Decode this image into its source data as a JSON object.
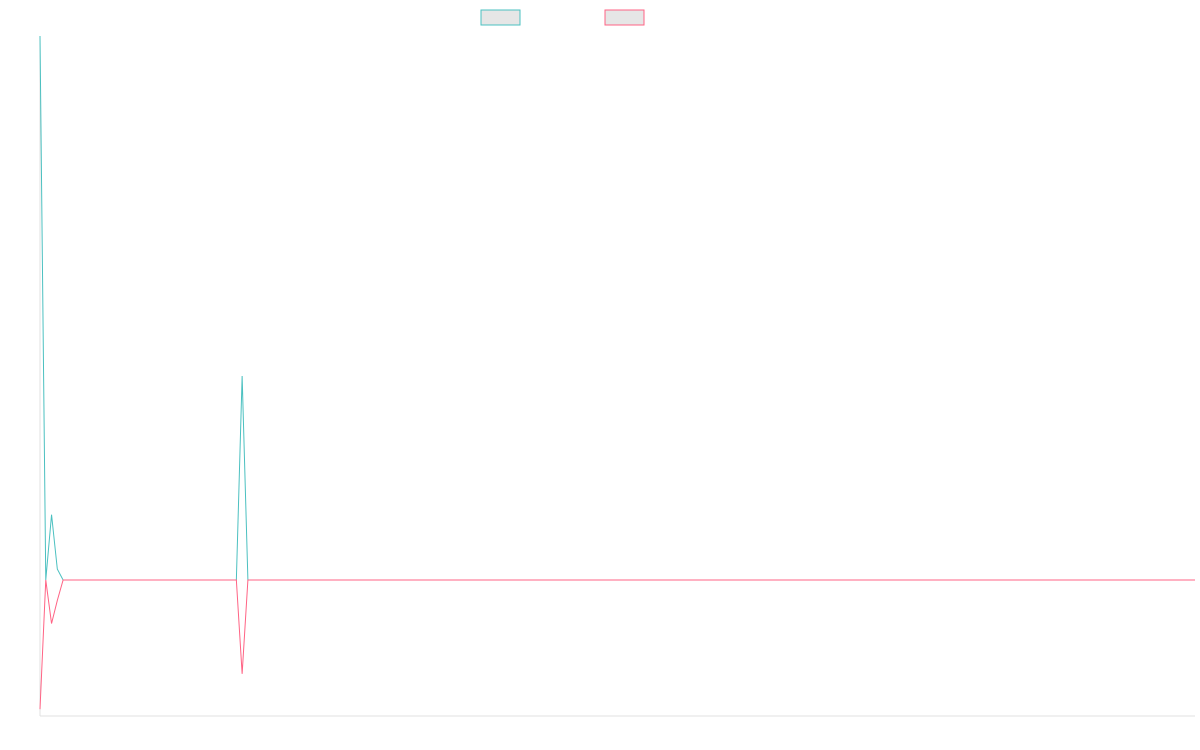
{
  "chart_data": {
    "type": "line",
    "title": "",
    "xlabel": "",
    "ylabel": "",
    "grid": false,
    "legend": "top-center",
    "x": [
      0,
      1,
      2,
      3,
      4,
      5,
      6,
      7,
      8,
      9,
      10,
      11,
      12,
      13,
      14,
      15,
      16,
      17,
      18,
      19,
      20,
      21,
      22,
      23,
      24,
      25,
      26,
      27,
      28,
      29,
      30,
      31,
      32,
      33,
      34,
      35,
      36,
      37,
      38,
      39,
      40,
      41,
      42,
      43,
      44,
      45,
      46,
      47,
      48,
      49,
      50,
      51,
      52,
      53,
      54,
      55,
      56,
      57,
      58,
      59,
      60,
      61,
      62,
      63,
      64,
      65,
      66,
      67,
      68,
      69,
      70,
      71,
      72,
      73,
      74,
      75,
      76,
      77,
      78,
      79,
      80,
      81,
      82,
      83,
      84,
      85,
      86,
      87,
      88,
      89,
      90,
      91,
      92,
      93,
      94,
      95,
      96,
      97,
      98,
      99,
      100,
      101,
      102,
      103,
      104,
      105,
      106,
      107,
      108,
      109,
      110,
      111,
      112,
      113,
      114,
      115,
      116,
      117,
      118,
      119,
      120,
      121,
      122,
      123,
      124,
      125,
      126,
      127,
      128,
      129,
      130,
      131,
      132,
      133,
      134,
      135,
      136,
      137,
      138,
      139,
      140,
      141,
      142,
      143,
      144,
      145,
      146,
      147,
      148,
      149,
      150,
      151,
      152,
      153,
      154,
      155,
      156,
      157,
      158,
      159,
      160,
      161,
      162,
      163,
      164,
      165,
      166,
      167,
      168,
      169,
      170,
      171,
      172,
      173,
      174,
      175,
      176,
      177,
      178,
      179,
      180,
      181,
      182,
      183,
      184,
      185,
      186,
      187,
      188,
      189,
      190,
      191,
      192,
      193,
      194,
      195,
      196,
      197,
      198,
      199,
      200
    ],
    "ylim": [
      -100,
      400
    ],
    "series": [
      {
        "color": "#4bc0c0",
        "values": [
          400,
          0,
          48,
          8,
          0,
          0,
          0,
          0,
          0,
          0,
          0,
          0,
          0,
          0,
          0,
          0,
          0,
          0,
          0,
          0,
          0,
          0,
          0,
          0,
          0,
          0,
          0,
          0,
          0,
          0,
          0,
          0,
          0,
          0,
          0,
          150,
          0,
          0,
          0,
          0,
          0,
          0,
          0,
          0,
          0,
          0,
          0,
          0,
          0,
          0,
          0,
          0,
          0,
          0,
          0,
          0,
          0,
          0,
          0,
          0,
          0,
          0,
          0,
          0,
          0,
          0,
          0,
          0,
          0,
          0,
          0,
          0,
          0,
          0,
          0,
          0,
          0,
          0,
          0,
          0,
          0,
          0,
          0,
          0,
          0,
          0,
          0,
          0,
          0,
          0,
          0,
          0,
          0,
          0,
          0,
          0,
          0,
          0,
          0,
          0,
          0,
          0,
          0,
          0,
          0,
          0,
          0,
          0,
          0,
          0,
          0,
          0,
          0,
          0,
          0,
          0,
          0,
          0,
          0,
          0,
          0,
          0,
          0,
          0,
          0,
          0,
          0,
          0,
          0,
          0,
          0,
          0,
          0,
          0,
          0,
          0,
          0,
          0,
          0,
          0,
          0,
          0,
          0,
          0,
          0,
          0,
          0,
          0,
          0,
          0,
          0,
          0,
          0,
          0,
          0,
          0,
          0,
          0,
          0,
          0,
          0,
          0,
          0,
          0,
          0,
          0,
          0,
          0,
          0,
          0,
          0,
          0,
          0,
          0,
          0,
          0,
          0,
          0,
          0,
          0,
          0,
          0,
          0,
          0,
          0,
          0,
          0,
          0,
          0,
          0,
          0,
          0,
          0,
          0,
          0,
          0,
          0,
          0,
          0,
          0,
          0
        ]
      },
      {
        "color": "#ff6384",
        "values": [
          -95,
          0,
          -32,
          -15,
          0,
          0,
          0,
          0,
          0,
          0,
          0,
          0,
          0,
          0,
          0,
          0,
          0,
          0,
          0,
          0,
          0,
          0,
          0,
          0,
          0,
          0,
          0,
          0,
          0,
          0,
          0,
          0,
          0,
          0,
          0,
          -69,
          0,
          0,
          0,
          0,
          0,
          0,
          0,
          0,
          0,
          0,
          0,
          0,
          0,
          0,
          0,
          0,
          0,
          0,
          0,
          0,
          0,
          0,
          0,
          0,
          0,
          0,
          0,
          0,
          0,
          0,
          0,
          0,
          0,
          0,
          0,
          0,
          0,
          0,
          0,
          0,
          0,
          0,
          0,
          0,
          0,
          0,
          0,
          0,
          0,
          0,
          0,
          0,
          0,
          0,
          0,
          0,
          0,
          0,
          0,
          0,
          0,
          0,
          0,
          0,
          0,
          0,
          0,
          0,
          0,
          0,
          0,
          0,
          0,
          0,
          0,
          0,
          0,
          0,
          0,
          0,
          0,
          0,
          0,
          0,
          0,
          0,
          0,
          0,
          0,
          0,
          0,
          0,
          0,
          0,
          0,
          0,
          0,
          0,
          0,
          0,
          0,
          0,
          0,
          0,
          0,
          0,
          0,
          0,
          0,
          0,
          0,
          0,
          0,
          0,
          0,
          0,
          0,
          0,
          0,
          0,
          0,
          0,
          0,
          0,
          0,
          0,
          0,
          0,
          0,
          0,
          0,
          0,
          0,
          0,
          0,
          0,
          0,
          0,
          0,
          0,
          0,
          0,
          0,
          0,
          0,
          0,
          0,
          0,
          0,
          0,
          0,
          0,
          0,
          0,
          0,
          0,
          0,
          0,
          0,
          0,
          0,
          0,
          0,
          0,
          0
        ]
      }
    ],
    "legend_fill": "#e6e6e6",
    "axis_color": "#e0e0e0"
  }
}
